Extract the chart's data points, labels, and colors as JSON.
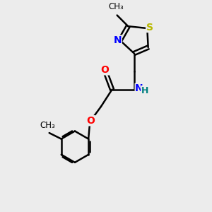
{
  "bg_color": "#ececec",
  "bond_color": "#000000",
  "S_color": "#b8b800",
  "N_color": "#0000ff",
  "O_color": "#ff0000",
  "NH_color": "#008080",
  "line_width": 1.8,
  "figsize": [
    3.0,
    3.0
  ],
  "dpi": 100,
  "xlim": [
    0,
    10
  ],
  "ylim": [
    0,
    10
  ]
}
